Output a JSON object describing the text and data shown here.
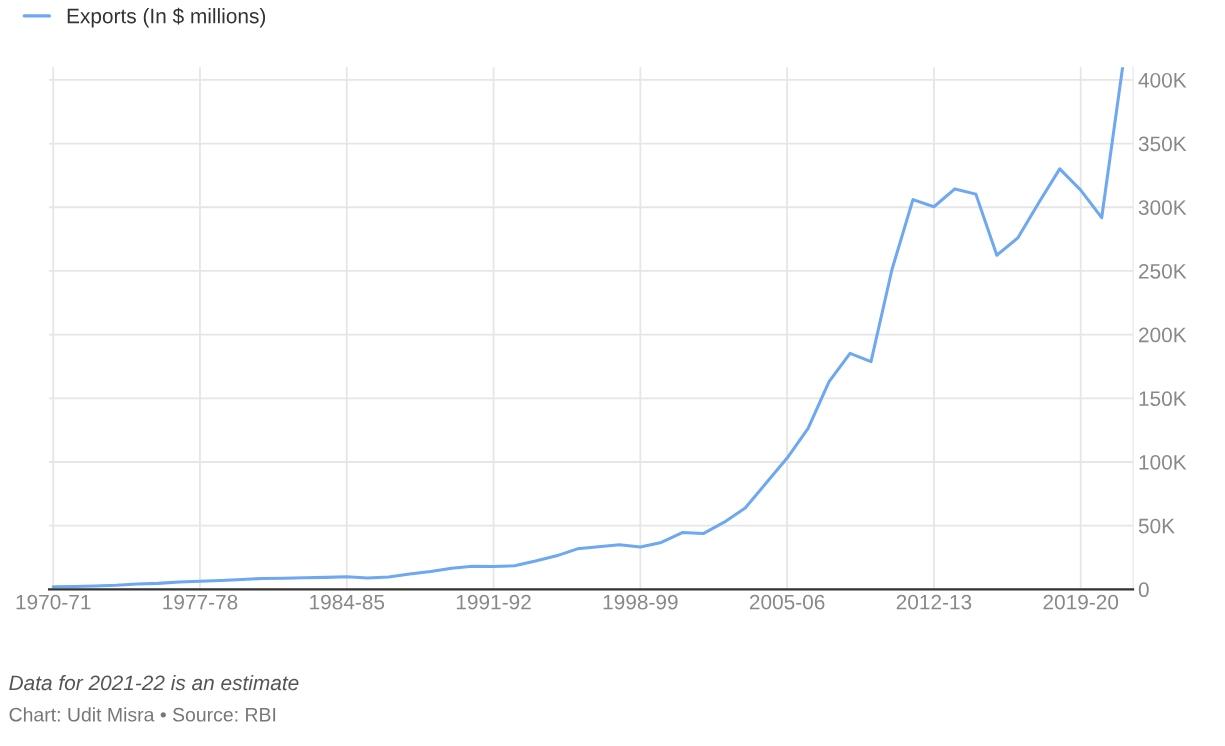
{
  "chart_data": {
    "type": "line",
    "categories": [
      "1970-71",
      null,
      null,
      null,
      null,
      null,
      null,
      "1977-78",
      null,
      null,
      null,
      null,
      null,
      null,
      "1984-85",
      null,
      null,
      null,
      null,
      null,
      null,
      "1991-92",
      null,
      null,
      null,
      null,
      null,
      null,
      "1998-99",
      null,
      null,
      null,
      null,
      null,
      null,
      "2005-06",
      null,
      null,
      null,
      null,
      null,
      null,
      "2012-13",
      null,
      null,
      null,
      null,
      null,
      null,
      "2019-20",
      null,
      null
    ],
    "series": [
      {
        "name": "Exports (In $ millions)",
        "color": "#6ea8f0",
        "values": [
          2000,
          2200,
          2600,
          3200,
          4200,
          4700,
          5800,
          6300,
          7000,
          7800,
          8500,
          8700,
          9100,
          9400,
          9900,
          8900,
          9700,
          12100,
          14000,
          16600,
          18100,
          17900,
          18500,
          22200,
          26300,
          31800,
          33500,
          35000,
          33200,
          36800,
          44600,
          43800,
          52700,
          63800,
          83500,
          103100,
          126400,
          163100,
          185300,
          178800,
          251100,
          306000,
          300400,
          314400,
          310300,
          262300,
          275900,
          303500,
          330100,
          313400,
          291800,
          410000
        ]
      }
    ],
    "ylim": [
      0,
      410000
    ],
    "yticks": [
      0,
      {
        "value": 50000,
        "label": "50K"
      },
      {
        "value": 100000,
        "label": "100K"
      },
      {
        "value": 150000,
        "label": "150K"
      },
      {
        "value": 200000,
        "label": "200K"
      },
      {
        "value": 250000,
        "label": "250K"
      },
      {
        "value": 300000,
        "label": "300K"
      },
      {
        "value": 350000,
        "label": "350K"
      },
      {
        "value": 400000,
        "label": "400K"
      }
    ],
    "grid": true,
    "legend": "top left",
    "marker": "none",
    "line_style": "solid",
    "annotations": [
      "Data for 2021-22 is an estimate",
      "Chart: Udit Misra • Source: RBI"
    ]
  }
}
